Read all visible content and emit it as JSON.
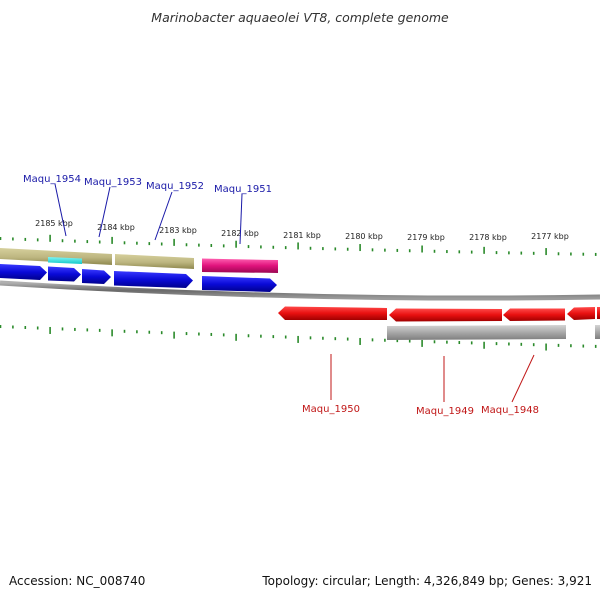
{
  "title": "Marinobacter aquaeolei VT8, complete genome",
  "footer": {
    "accession": "Accession: NC_008740",
    "topology": "Topology: circular; Length: 4,326,849 bp; Genes: 3,921"
  },
  "colors": {
    "forward_cds": "#1010e0",
    "reverse_cds": "#ee1111",
    "khaki_feature": "#bdb680",
    "cyan_feature": "#22e6e6",
    "magenta_feature": "#e0127c",
    "grey_feature": "#a8a8a8",
    "backbone": "#7a7a7a",
    "tick": "#2a8a2a",
    "label_forward": "#1a1aa8",
    "label_reverse": "#c11717"
  },
  "tick_labels": [
    "2185 kbp",
    "2184 kbp",
    "2183 kbp",
    "2182 kbp",
    "2181 kbp",
    "2180 kbp",
    "2179 kbp",
    "2178 kbp",
    "2177 kbp"
  ],
  "genes_forward": [
    "Maqu_1954",
    "Maqu_1953",
    "Maqu_1952",
    "Maqu_1951"
  ],
  "genes_reverse": [
    "Maqu_1950",
    "Maqu_1949",
    "Maqu_1948"
  ]
}
